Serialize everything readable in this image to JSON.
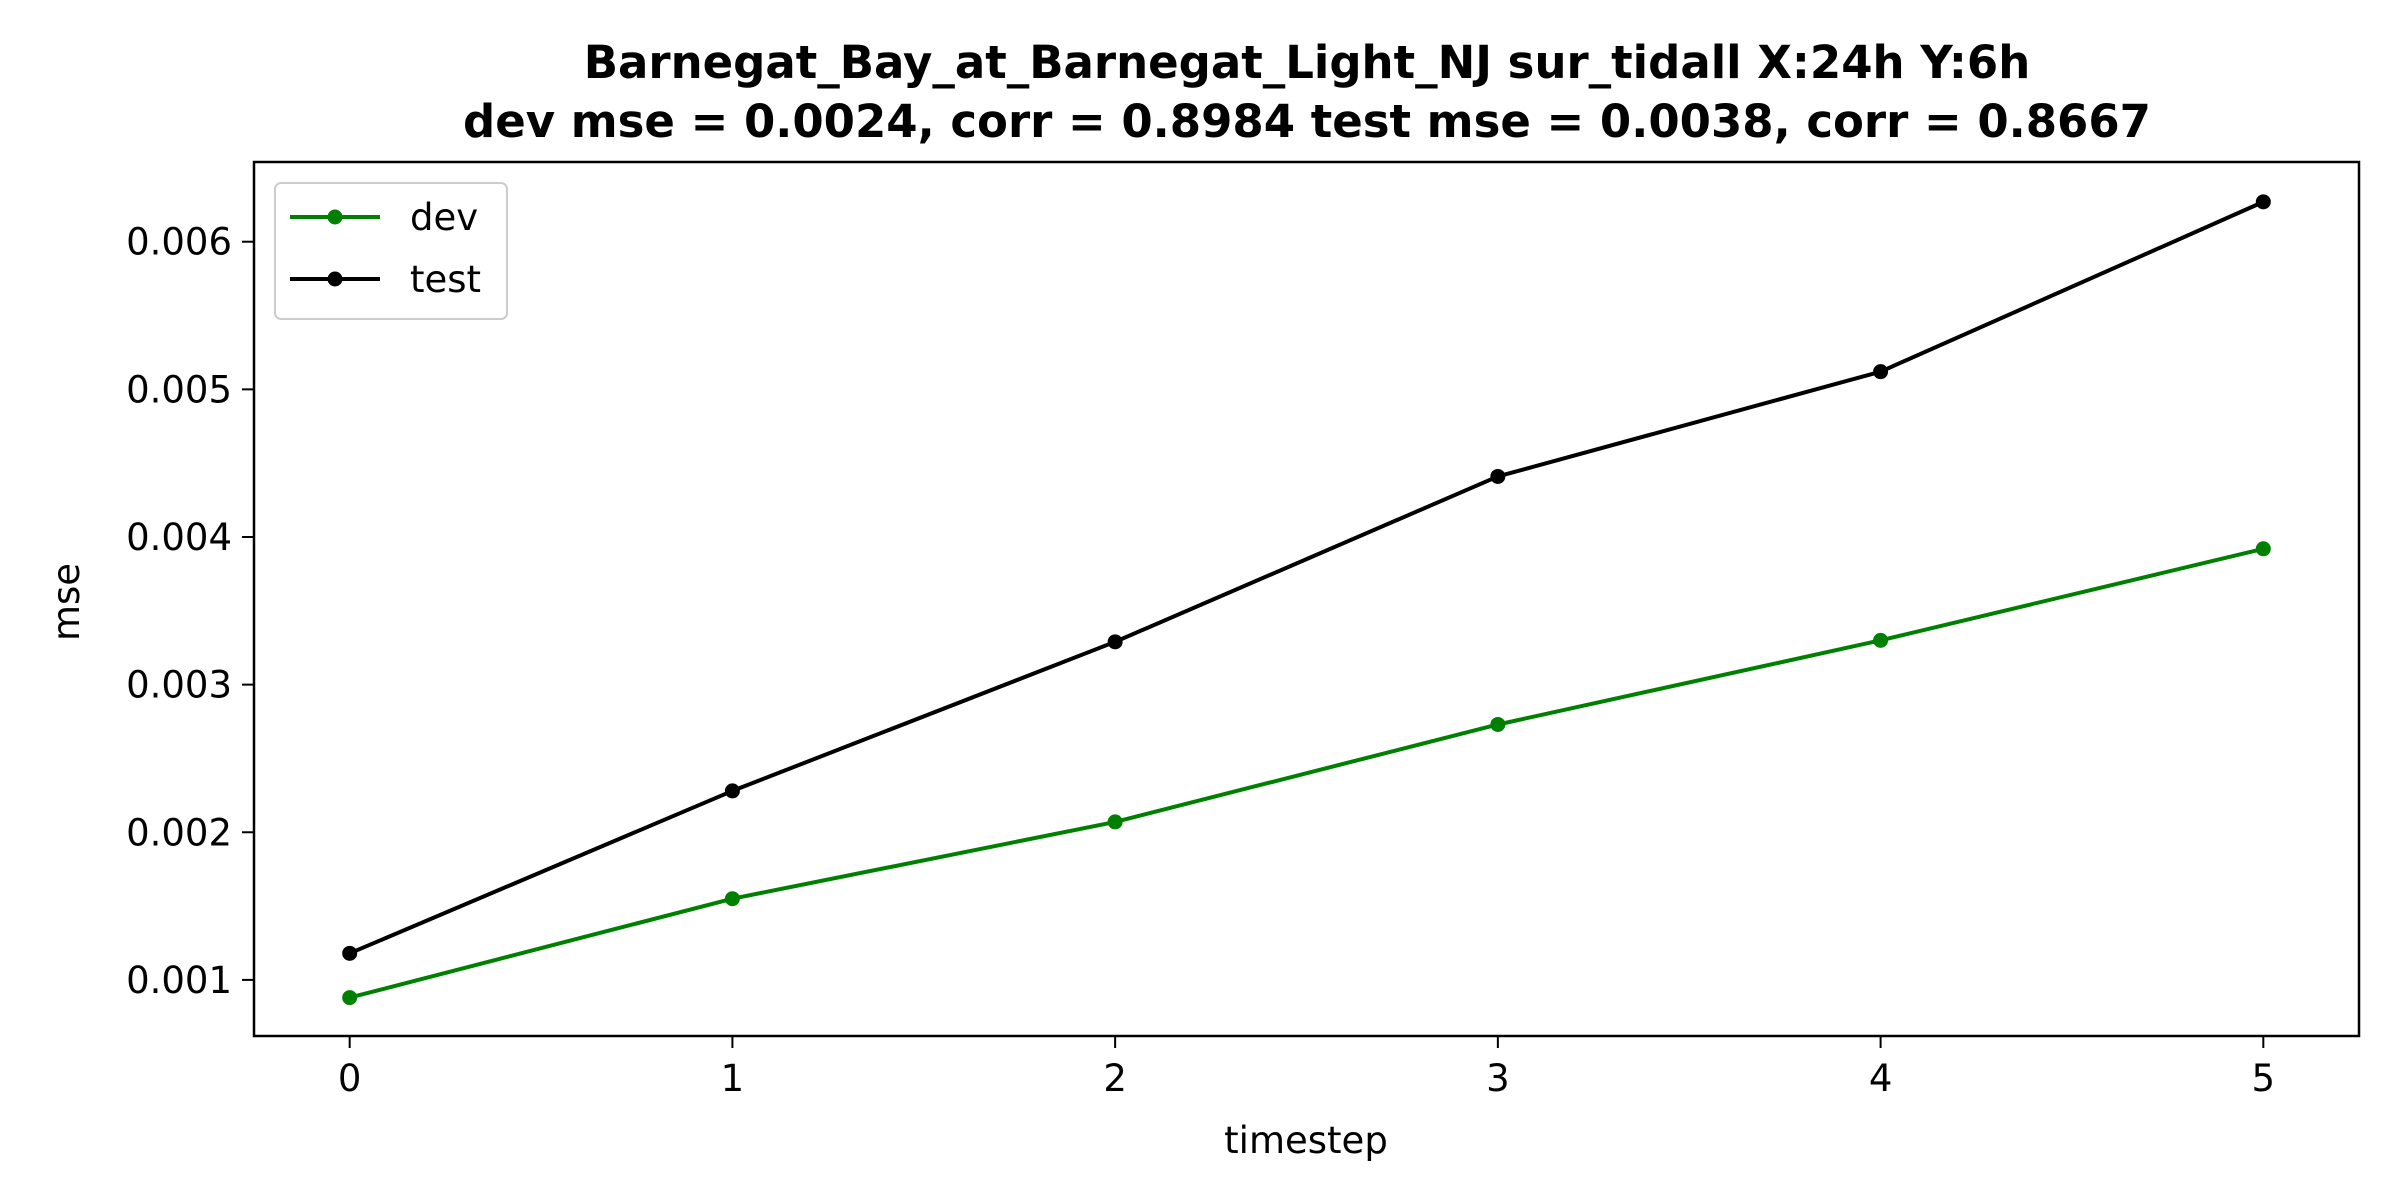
{
  "chart_data": {
    "type": "line",
    "title_line1": "Barnegat_Bay_at_Barnegat_Light_NJ   sur_tidall   X:24h   Y:6h",
    "title_line2": "dev mse = 0.0024, corr = 0.8984   test mse = 0.0038, corr = 0.8667",
    "xlabel": "timestep",
    "ylabel": "mse",
    "x": [
      0,
      1,
      2,
      3,
      4,
      5
    ],
    "xlim": [
      -0.25,
      5.25
    ],
    "ylim": [
      0.00062,
      0.00654
    ],
    "xticks": [
      "0",
      "1",
      "2",
      "3",
      "4",
      "5"
    ],
    "yticks": [
      0.001,
      0.002,
      0.003,
      0.004,
      0.005,
      0.006
    ],
    "ytick_labels": [
      "0.001",
      "0.002",
      "0.003",
      "0.004",
      "0.005",
      "0.006"
    ],
    "grid": false,
    "legend_position": "upper-left",
    "series": [
      {
        "name": "dev",
        "color": "#008000",
        "values": [
          0.00088,
          0.00155,
          0.00207,
          0.00273,
          0.0033,
          0.00392
        ]
      },
      {
        "name": "test",
        "color": "#000000",
        "values": [
          0.00118,
          0.00228,
          0.00329,
          0.00441,
          0.00512,
          0.00627
        ]
      }
    ]
  }
}
